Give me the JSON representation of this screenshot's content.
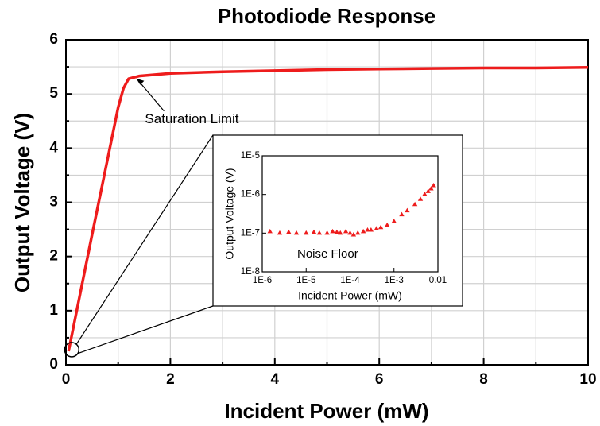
{
  "chart_data": [
    {
      "type": "line",
      "title": "Photodiode Response",
      "x_label": "Incident Power (mW)",
      "y_label": "Output Voltage (V)",
      "x": [
        0.05,
        0.5,
        1.0,
        1.1,
        1.2,
        1.4,
        2,
        3,
        4,
        5,
        6,
        7,
        8,
        9,
        10
      ],
      "series": [
        {
          "name": "Output Voltage",
          "color": "#ee1c1c",
          "values": [
            0.25,
            2.4,
            4.75,
            5.1,
            5.28,
            5.33,
            5.38,
            5.41,
            5.43,
            5.45,
            5.46,
            5.47,
            5.48,
            5.48,
            5.49
          ]
        }
      ],
      "xlim": [
        0,
        10
      ],
      "xticks": [
        0,
        2,
        4,
        6,
        8,
        10
      ],
      "xminor_ticks": [
        1,
        3,
        5,
        7,
        9
      ],
      "ylim": [
        0,
        6
      ],
      "yticks": [
        0,
        1,
        2,
        3,
        4,
        5,
        6
      ],
      "yminor_ticks": [
        0.5,
        1.5,
        2.5,
        3.5,
        4.5,
        5.5
      ],
      "grid": true,
      "annotation": {
        "text": "Saturation Limit",
        "x": 1.3,
        "y": 5.3
      }
    },
    {
      "type": "scatter",
      "x_label": "Incident Power (mW)",
      "y_label": "Output Voltage (V)",
      "xscale": "log",
      "yscale": "log",
      "x": [
        1.5e-06,
        2.5e-06,
        4e-06,
        6e-06,
        1e-05,
        1.5e-05,
        2e-05,
        3e-05,
        4e-05,
        5e-05,
        6e-05,
        8e-05,
        0.0001,
        0.00012,
        0.00015,
        0.0002,
        0.00025,
        0.0003,
        0.0004,
        0.0005,
        0.0007,
        0.001,
        0.0015,
        0.002,
        0.003,
        0.004,
        0.005,
        0.006,
        0.007,
        0.008
      ],
      "series": [
        {
          "name": "Output Voltage",
          "color": "#ee1c1c",
          "values": [
            1.1e-07,
            1e-07,
            1.05e-07,
            1e-07,
            1e-07,
            1.05e-07,
            1e-07,
            1e-07,
            1.1e-07,
            1.05e-07,
            1e-07,
            1.1e-07,
            1e-07,
            9e-08,
            1e-07,
            1.1e-07,
            1.2e-07,
            1.2e-07,
            1.3e-07,
            1.4e-07,
            1.6e-07,
            2e-07,
            3e-07,
            3.8e-07,
            5.5e-07,
            7.5e-07,
            1e-06,
            1.2e-06,
            1.4e-06,
            1.7e-06
          ]
        }
      ],
      "xlim": [
        1e-06,
        0.01
      ],
      "xticks": [
        {
          "value": 1e-06,
          "label": "1E-6"
        },
        {
          "value": 1e-05,
          "label": "1E-5"
        },
        {
          "value": 0.0001,
          "label": "1E-4"
        },
        {
          "value": 0.001,
          "label": "1E-3"
        },
        0.01
      ],
      "ylim": [
        1e-08,
        1e-05
      ],
      "yticks": [
        {
          "value": 1e-08,
          "label": "1E-8"
        },
        {
          "value": 1e-07,
          "label": "1E-7"
        },
        {
          "value": 1e-06,
          "label": "1E-6"
        },
        {
          "value": 1e-05,
          "label": "1E-5"
        }
      ],
      "annotation": "Noise Floor"
    }
  ]
}
